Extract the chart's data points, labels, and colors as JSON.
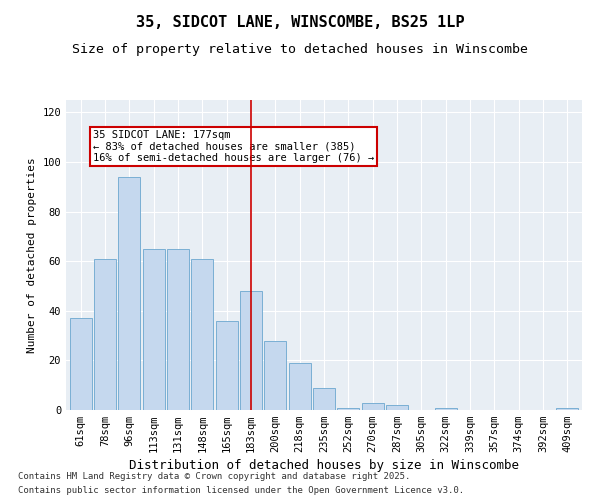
{
  "title": "35, SIDCOT LANE, WINSCOMBE, BS25 1LP",
  "subtitle": "Size of property relative to detached houses in Winscombe",
  "xlabel": "Distribution of detached houses by size in Winscombe",
  "ylabel": "Number of detached properties",
  "categories": [
    "61sqm",
    "78sqm",
    "96sqm",
    "113sqm",
    "131sqm",
    "148sqm",
    "165sqm",
    "183sqm",
    "200sqm",
    "218sqm",
    "235sqm",
    "252sqm",
    "270sqm",
    "287sqm",
    "305sqm",
    "322sqm",
    "339sqm",
    "357sqm",
    "374sqm",
    "392sqm",
    "409sqm"
  ],
  "values": [
    37,
    61,
    94,
    65,
    65,
    61,
    36,
    48,
    28,
    19,
    9,
    1,
    3,
    2,
    0,
    1,
    0,
    0,
    0,
    0,
    1
  ],
  "bar_color": "#C5D8EE",
  "bar_edge_color": "#7AAFD4",
  "highlight_idx": 7,
  "highlight_line_color": "#CC0000",
  "annotation_text": "35 SIDCOT LANE: 177sqm\n← 83% of detached houses are smaller (385)\n16% of semi-detached houses are larger (76) →",
  "annotation_box_color": "#CC0000",
  "ylim": [
    0,
    125
  ],
  "yticks": [
    0,
    20,
    40,
    60,
    80,
    100,
    120
  ],
  "bg_color": "#E8EEF4",
  "footer_line1": "Contains HM Land Registry data © Crown copyright and database right 2025.",
  "footer_line2": "Contains public sector information licensed under the Open Government Licence v3.0.",
  "title_fontsize": 11,
  "subtitle_fontsize": 9.5,
  "xlabel_fontsize": 9,
  "ylabel_fontsize": 8,
  "tick_fontsize": 7.5,
  "footer_fontsize": 6.5,
  "ann_fontsize": 7.5
}
